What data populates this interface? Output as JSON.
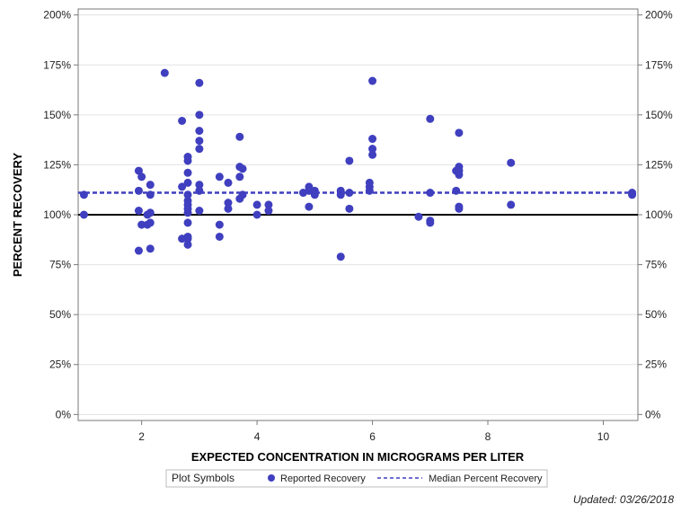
{
  "chart_data": {
    "type": "scatter",
    "title": "",
    "xlabel": "EXPECTED CONCENTRATION IN MICROGRAMS PER LITER",
    "ylabel": "PERCENT RECOVERY",
    "xlim": [
      0.9,
      10.6
    ],
    "ylim": [
      -3,
      203
    ],
    "x_ticks": [
      2,
      4,
      6,
      8,
      10
    ],
    "x_tick_labels": [
      "2",
      "4",
      "6",
      "8",
      "10"
    ],
    "y_ticks": [
      0,
      25,
      50,
      75,
      100,
      125,
      150,
      175,
      200
    ],
    "y_tick_labels": [
      "0%",
      "25%",
      "50%",
      "75%",
      "100%",
      "125%",
      "150%",
      "175%",
      "200%"
    ],
    "reference_line": 100,
    "median_line": 111,
    "grid": true,
    "legend_position": "bottom-center",
    "series": [
      {
        "name": "Reported Recovery",
        "color": "#3f3fbf",
        "points": [
          [
            1.0,
            110
          ],
          [
            1.0,
            100
          ],
          [
            1.95,
            122
          ],
          [
            1.95,
            112
          ],
          [
            1.95,
            102
          ],
          [
            1.95,
            82
          ],
          [
            2.0,
            119
          ],
          [
            2.0,
            95
          ],
          [
            2.1,
            100
          ],
          [
            2.1,
            95
          ],
          [
            2.15,
            115
          ],
          [
            2.15,
            110
          ],
          [
            2.15,
            101
          ],
          [
            2.15,
            96
          ],
          [
            2.15,
            83
          ],
          [
            2.4,
            171
          ],
          [
            2.7,
            147
          ],
          [
            2.7,
            114
          ],
          [
            2.7,
            88
          ],
          [
            2.8,
            129
          ],
          [
            2.8,
            127
          ],
          [
            2.8,
            121
          ],
          [
            2.8,
            116
          ],
          [
            2.8,
            110
          ],
          [
            2.8,
            107
          ],
          [
            2.8,
            105
          ],
          [
            2.8,
            103
          ],
          [
            2.8,
            101
          ],
          [
            2.8,
            96
          ],
          [
            2.8,
            89
          ],
          [
            2.8,
            88
          ],
          [
            2.8,
            85
          ],
          [
            3.0,
            166
          ],
          [
            3.0,
            150
          ],
          [
            3.0,
            142
          ],
          [
            3.0,
            137
          ],
          [
            3.0,
            133
          ],
          [
            3.0,
            115
          ],
          [
            3.0,
            112
          ],
          [
            3.0,
            102
          ],
          [
            3.35,
            119
          ],
          [
            3.35,
            95
          ],
          [
            3.35,
            89
          ],
          [
            3.5,
            116
          ],
          [
            3.5,
            106
          ],
          [
            3.5,
            103
          ],
          [
            3.7,
            139
          ],
          [
            3.7,
            124
          ],
          [
            3.7,
            119
          ],
          [
            3.7,
            108
          ],
          [
            3.75,
            123
          ],
          [
            3.75,
            110
          ],
          [
            4.0,
            105
          ],
          [
            4.0,
            100
          ],
          [
            4.2,
            105
          ],
          [
            4.2,
            102
          ],
          [
            4.8,
            111
          ],
          [
            4.9,
            114
          ],
          [
            4.9,
            112
          ],
          [
            4.9,
            104
          ],
          [
            5.0,
            112
          ],
          [
            5.0,
            110
          ],
          [
            5.45,
            112
          ],
          [
            5.45,
            110
          ],
          [
            5.45,
            79
          ],
          [
            5.6,
            127
          ],
          [
            5.6,
            111
          ],
          [
            5.6,
            103
          ],
          [
            5.95,
            116
          ],
          [
            5.95,
            114
          ],
          [
            5.95,
            112
          ],
          [
            6.0,
            167
          ],
          [
            6.0,
            138
          ],
          [
            6.0,
            133
          ],
          [
            6.0,
            130
          ],
          [
            6.8,
            99
          ],
          [
            7.0,
            148
          ],
          [
            7.0,
            111
          ],
          [
            7.0,
            97
          ],
          [
            7.0,
            96
          ],
          [
            7.45,
            122
          ],
          [
            7.45,
            112
          ],
          [
            7.5,
            141
          ],
          [
            7.5,
            124
          ],
          [
            7.5,
            122
          ],
          [
            7.5,
            120
          ],
          [
            7.5,
            103
          ],
          [
            7.5,
            104
          ],
          [
            8.4,
            126
          ],
          [
            8.4,
            105
          ],
          [
            10.5,
            111
          ],
          [
            10.5,
            110
          ]
        ]
      },
      {
        "name": "Median Percent Recovery",
        "color": "#3f3fbf",
        "style": "dashed",
        "y": 111
      }
    ]
  },
  "legend": {
    "title": "Plot Symbols",
    "items": [
      "Reported Recovery",
      "Median Percent Recovery"
    ]
  },
  "footer": {
    "updated": "Updated: 03/26/2018"
  }
}
